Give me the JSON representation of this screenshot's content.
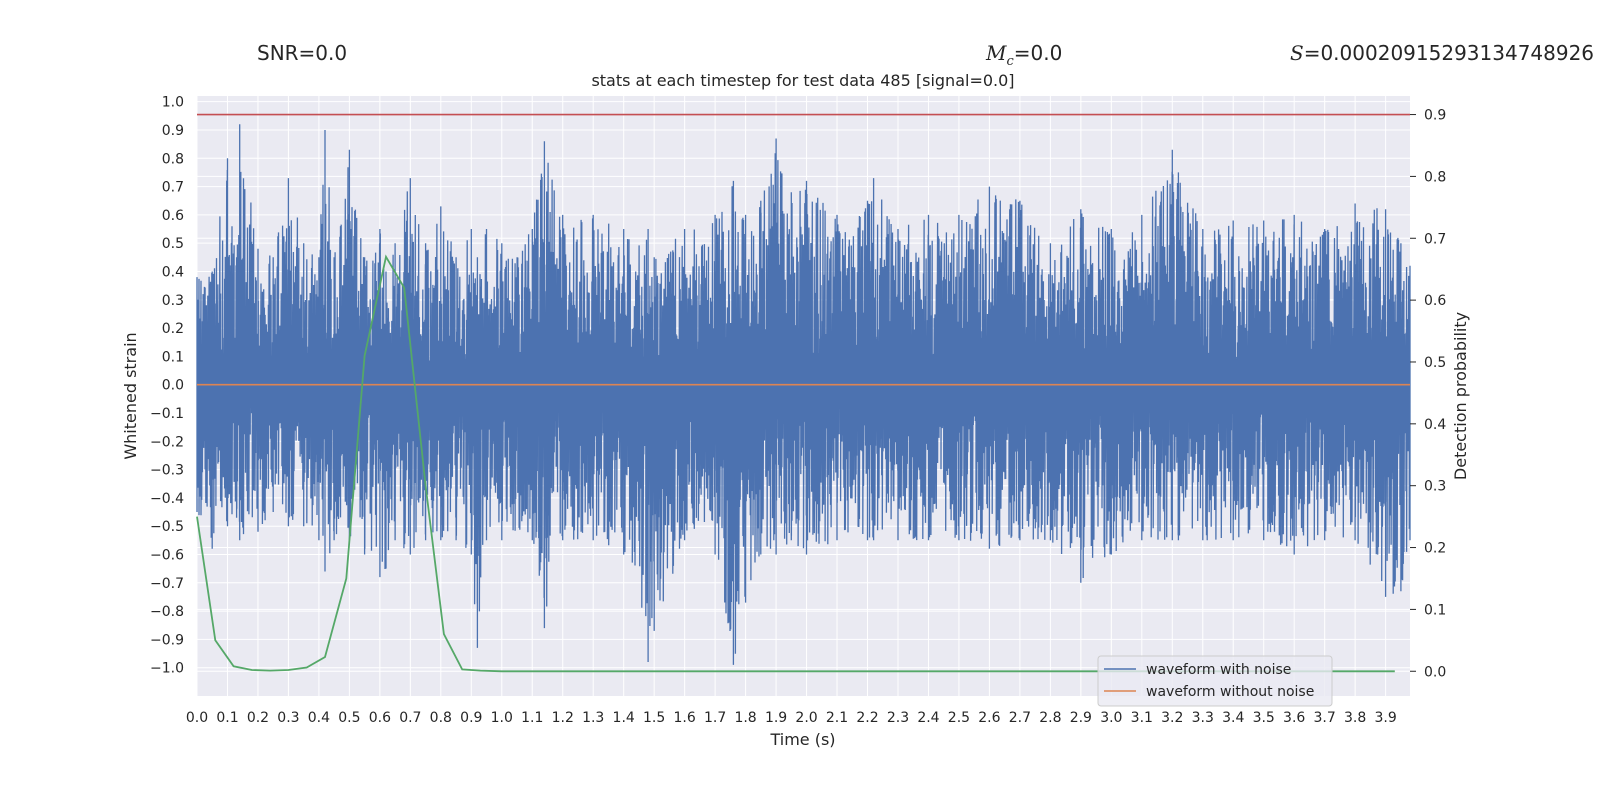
{
  "header": {
    "snr_label": "SNR=0.0",
    "mc_symbol": "M",
    "mc_sub": "c",
    "mc_value": "=0.0",
    "s_symbol": "S",
    "s_value": "=0.00020915293134748926"
  },
  "chart_data": {
    "type": "line",
    "title": "stats at each timestep for test data 485 [signal=0.0]",
    "xlabel": "Time (s)",
    "ylabel": "Whitened strain",
    "y2label": "Detection probability",
    "xlim": [
      0.0,
      3.98
    ],
    "ylim": [
      -1.1,
      1.02
    ],
    "y2lim": [
      -0.04,
      0.93
    ],
    "grid": true,
    "legend_position": "lower-right",
    "x_ticks": [
      "0.0",
      "0.1",
      "0.2",
      "0.3",
      "0.4",
      "0.5",
      "0.6",
      "0.7",
      "0.8",
      "0.9",
      "1.0",
      "1.1",
      "1.2",
      "1.3",
      "1.4",
      "1.5",
      "1.6",
      "1.7",
      "1.8",
      "1.9",
      "2.0",
      "2.1",
      "2.2",
      "2.3",
      "2.4",
      "2.5",
      "2.6",
      "2.7",
      "2.8",
      "2.9",
      "3.0",
      "3.1",
      "3.2",
      "3.3",
      "3.4",
      "3.5",
      "3.6",
      "3.7",
      "3.8",
      "3.9"
    ],
    "y_ticks": [
      "1.0",
      "0.9",
      "0.8",
      "0.7",
      "0.6",
      "0.5",
      "0.4",
      "0.3",
      "0.2",
      "0.1",
      "0.0",
      "−0.1",
      "−0.2",
      "−0.3",
      "−0.4",
      "−0.5",
      "−0.6",
      "−0.7",
      "−0.8",
      "−0.9",
      "−1.0"
    ],
    "y2_ticks": [
      "0.9",
      "0.8",
      "0.7",
      "0.6",
      "0.5",
      "0.4",
      "0.3",
      "0.2",
      "0.1",
      "0.0"
    ],
    "series": [
      {
        "name": "waveform with noise",
        "color": "#4c72b0",
        "axis": "left",
        "envelope_note": "dense noise trace, approx. upper/lower envelope",
        "x": [
          0.0,
          0.05,
          0.1,
          0.13,
          0.14,
          0.2,
          0.25,
          0.3,
          0.35,
          0.4,
          0.42,
          0.45,
          0.5,
          0.55,
          0.6,
          0.62,
          0.65,
          0.7,
          0.75,
          0.8,
          0.85,
          0.9,
          0.92,
          0.95,
          1.0,
          1.1,
          1.14,
          1.2,
          1.3,
          1.4,
          1.48,
          1.5,
          1.6,
          1.7,
          1.76,
          1.8,
          1.85,
          1.9,
          1.95,
          2.0,
          2.1,
          2.2,
          2.22,
          2.3,
          2.4,
          2.5,
          2.6,
          2.7,
          2.8,
          2.9,
          3.0,
          3.1,
          3.2,
          3.22,
          3.3,
          3.4,
          3.5,
          3.6,
          3.7,
          3.8,
          3.9,
          3.95,
          3.98
        ],
        "upper": [
          0.38,
          0.4,
          0.8,
          0.45,
          0.92,
          0.48,
          0.45,
          0.73,
          0.5,
          0.45,
          0.9,
          0.45,
          0.83,
          0.45,
          0.55,
          0.4,
          0.5,
          0.73,
          0.5,
          0.63,
          0.45,
          0.55,
          0.45,
          0.55,
          0.5,
          0.55,
          0.86,
          0.6,
          0.6,
          0.55,
          0.55,
          0.45,
          0.55,
          0.6,
          0.72,
          0.6,
          0.65,
          0.87,
          0.68,
          0.72,
          0.6,
          0.65,
          0.73,
          0.55,
          0.6,
          0.6,
          0.7,
          0.65,
          0.5,
          0.62,
          0.55,
          0.6,
          0.83,
          0.75,
          0.55,
          0.58,
          0.58,
          0.6,
          0.55,
          0.64,
          0.62,
          0.5,
          0.42
        ],
        "lower": [
          -0.45,
          -0.58,
          -0.5,
          -0.47,
          -0.55,
          -0.52,
          -0.45,
          -0.5,
          -0.5,
          -0.55,
          -0.66,
          -0.55,
          -0.55,
          -0.6,
          -0.68,
          -0.65,
          -0.55,
          -0.6,
          -0.55,
          -0.55,
          -0.55,
          -0.6,
          -0.93,
          -0.55,
          -0.55,
          -0.55,
          -0.86,
          -0.55,
          -0.55,
          -0.6,
          -0.98,
          -0.87,
          -0.55,
          -0.6,
          -0.99,
          -0.77,
          -0.6,
          -0.6,
          -0.55,
          -0.6,
          -0.55,
          -0.55,
          -0.55,
          -0.55,
          -0.55,
          -0.55,
          -0.58,
          -0.55,
          -0.55,
          -0.7,
          -0.6,
          -0.55,
          -0.55,
          -0.55,
          -0.55,
          -0.55,
          -0.55,
          -0.6,
          -0.55,
          -0.55,
          -0.75,
          -0.73,
          -0.55
        ]
      },
      {
        "name": "waveform without noise",
        "color": "#dd8452",
        "axis": "left",
        "x": [
          0.0,
          3.98
        ],
        "y": [
          0.0,
          0.0
        ]
      },
      {
        "name": "",
        "color": "#55a868",
        "axis": "right",
        "x": [
          0.0,
          0.06,
          0.12,
          0.18,
          0.24,
          0.3,
          0.36,
          0.42,
          0.49,
          0.55,
          0.62,
          0.68,
          0.75,
          0.81,
          0.87,
          0.93,
          1.0,
          3.93
        ],
        "y": [
          0.25,
          0.05,
          0.008,
          0.002,
          0.001,
          0.002,
          0.006,
          0.023,
          0.15,
          0.51,
          0.67,
          0.62,
          0.3,
          0.06,
          0.003,
          0.001,
          0.0,
          0.0
        ]
      }
    ],
    "threshold": {
      "value": 0.9,
      "axis": "right",
      "color": "#c44e52"
    }
  }
}
